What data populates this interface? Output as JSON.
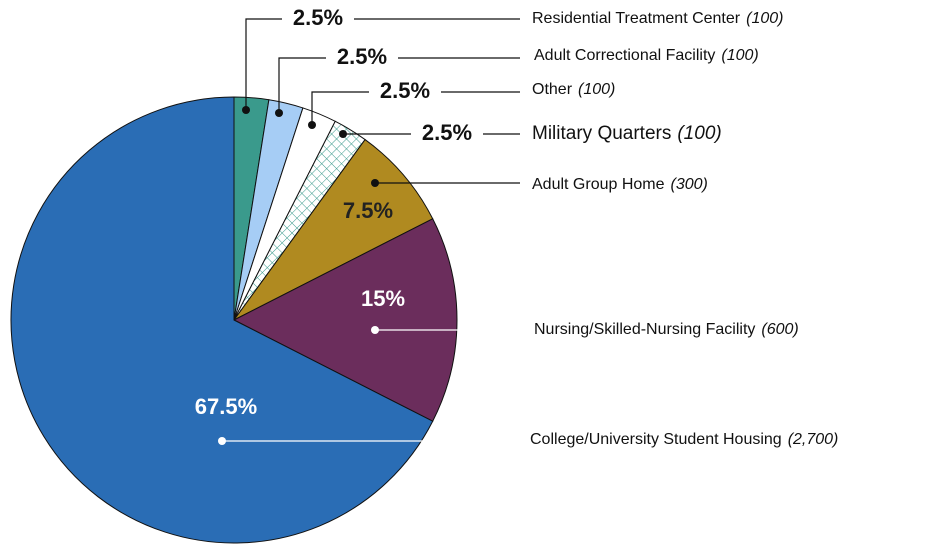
{
  "chart_data": {
    "type": "pie",
    "categories": [
      "Residential Treatment Center",
      "Adult Correctional Facility",
      "Other",
      "Military Quarters",
      "Adult Group Home",
      "Nursing/Skilled-Nursing Facility",
      "College/University Student Housing"
    ],
    "values": [
      2.5,
      2.5,
      2.5,
      2.5,
      7.5,
      15,
      67.5
    ],
    "value_labels": [
      "2.5%",
      "2.5%",
      "2.5%",
      "2.5%",
      "7.5%",
      "15%",
      "67.5%"
    ],
    "count_labels": [
      "(100)",
      "(100)",
      "(100)",
      "(100)",
      "(300)",
      "(600)",
      "(2,700)"
    ],
    "colors": [
      "#3a9a8c",
      "#a6cdf5",
      "#ffffff",
      "#ffffff",
      "#b08a20",
      "#6b2d5c",
      "#2a6db5"
    ]
  }
}
